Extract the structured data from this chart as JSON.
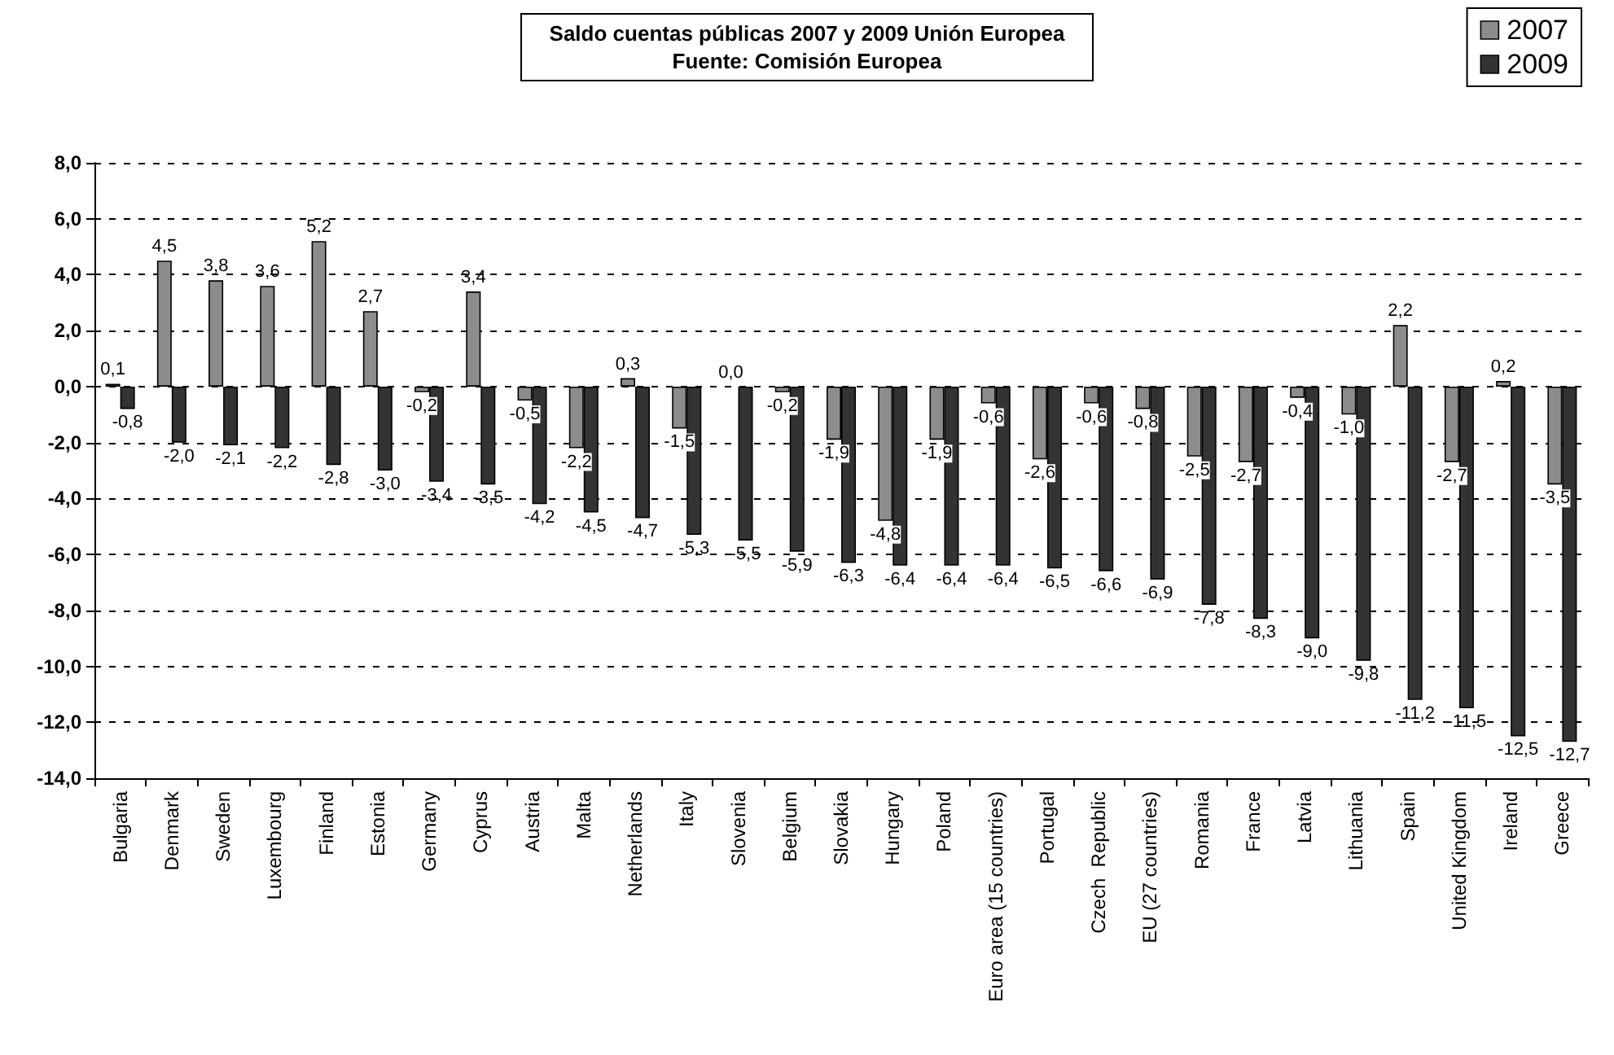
{
  "chart_data": {
    "type": "bar",
    "title": "Saldo cuentas públicas 2007 y 2009 Unión Europea",
    "subtitle": "Fuente: Comisión Europea",
    "categories": [
      "Bulgaria",
      "Denmark",
      "Sweden",
      "Luxembourg",
      "Finland",
      "Estonia",
      "Germany",
      "Cyprus",
      "Austria",
      "Malta",
      "Netherlands",
      "Italy",
      "Slovenia",
      "Belgium",
      "Slovakia",
      "Hungary",
      "Poland",
      "Euro area (15 countries)",
      "Portugal",
      "Czech  Republic",
      "EU (27 countries)",
      "Romania",
      "France",
      "Latvia",
      "Lithuania",
      "Spain",
      "United Kingdom",
      "Ireland",
      "Greece"
    ],
    "series": [
      {
        "name": "2007",
        "color": "#8c8c8c",
        "values": [
          0.1,
          4.5,
          3.8,
          3.6,
          5.2,
          2.7,
          -0.2,
          3.4,
          -0.5,
          -2.2,
          0.3,
          -1.5,
          0.0,
          -0.2,
          -1.9,
          -4.8,
          -1.9,
          -0.6,
          -2.6,
          -0.6,
          -0.8,
          -2.5,
          -2.7,
          -0.4,
          -1.0,
          2.2,
          -2.7,
          0.2,
          -3.5
        ],
        "value_labels": [
          "0,1",
          "4,5",
          "3,8",
          "3,6",
          "5,2",
          "2,7",
          "-0,2",
          "3,4",
          "-0,5",
          "-2,2",
          "0,3",
          "-1,5",
          "0,0",
          "-0,2",
          "-1,9",
          "-4,8",
          "-1,9",
          "-0,6",
          "-2,6",
          "-0,6",
          "-0,8",
          "-2,5",
          "-2,7",
          "-0,4",
          "-1,0",
          "2,2",
          "-2,7",
          "0,2",
          "-3,5"
        ]
      },
      {
        "name": "2009",
        "color": "#333333",
        "values": [
          -0.8,
          -2.0,
          -2.1,
          -2.2,
          -2.8,
          -3.0,
          -3.4,
          -3.5,
          -4.2,
          -4.5,
          -4.7,
          -5.3,
          -5.5,
          -5.9,
          -6.3,
          -6.4,
          -6.4,
          -6.4,
          -6.5,
          -6.6,
          -6.9,
          -7.8,
          -8.3,
          -9.0,
          -9.8,
          -11.2,
          -11.5,
          -12.5,
          -12.7
        ],
        "value_labels": [
          "-0,8",
          "-2,0",
          "-2,1",
          "-2,2",
          "-2,8",
          "-3,0",
          "-3,4",
          "-3,5",
          "-4,2",
          "-4,5",
          "-4,7",
          "-5,3",
          "-5,5",
          "-5,9",
          "-6,3",
          "-6,4",
          "-6,4",
          "-6,4",
          "-6,5",
          "-6,6",
          "-6,9",
          "-7,8",
          "-8,3",
          "-9,0",
          "-9,8",
          "-11,2",
          "-11,5",
          "-12,5",
          "-12,7"
        ]
      }
    ],
    "ylim": [
      -14,
      8
    ],
    "yticks": [
      {
        "value": -14,
        "label": "-14,0"
      },
      {
        "value": -12,
        "label": "-12,0"
      },
      {
        "value": -10,
        "label": "-10,0"
      },
      {
        "value": -8,
        "label": "-8,0"
      },
      {
        "value": -6,
        "label": "-6,0"
      },
      {
        "value": -4,
        "label": "-4,0"
      },
      {
        "value": -2,
        "label": "-2,0"
      },
      {
        "value": 0,
        "label": "0,0"
      },
      {
        "value": 2,
        "label": "2,0"
      },
      {
        "value": 4,
        "label": "4,0"
      },
      {
        "value": 6,
        "label": "6,0"
      },
      {
        "value": 8,
        "label": "8,0"
      }
    ],
    "grid": "y",
    "legend": "top right"
  }
}
